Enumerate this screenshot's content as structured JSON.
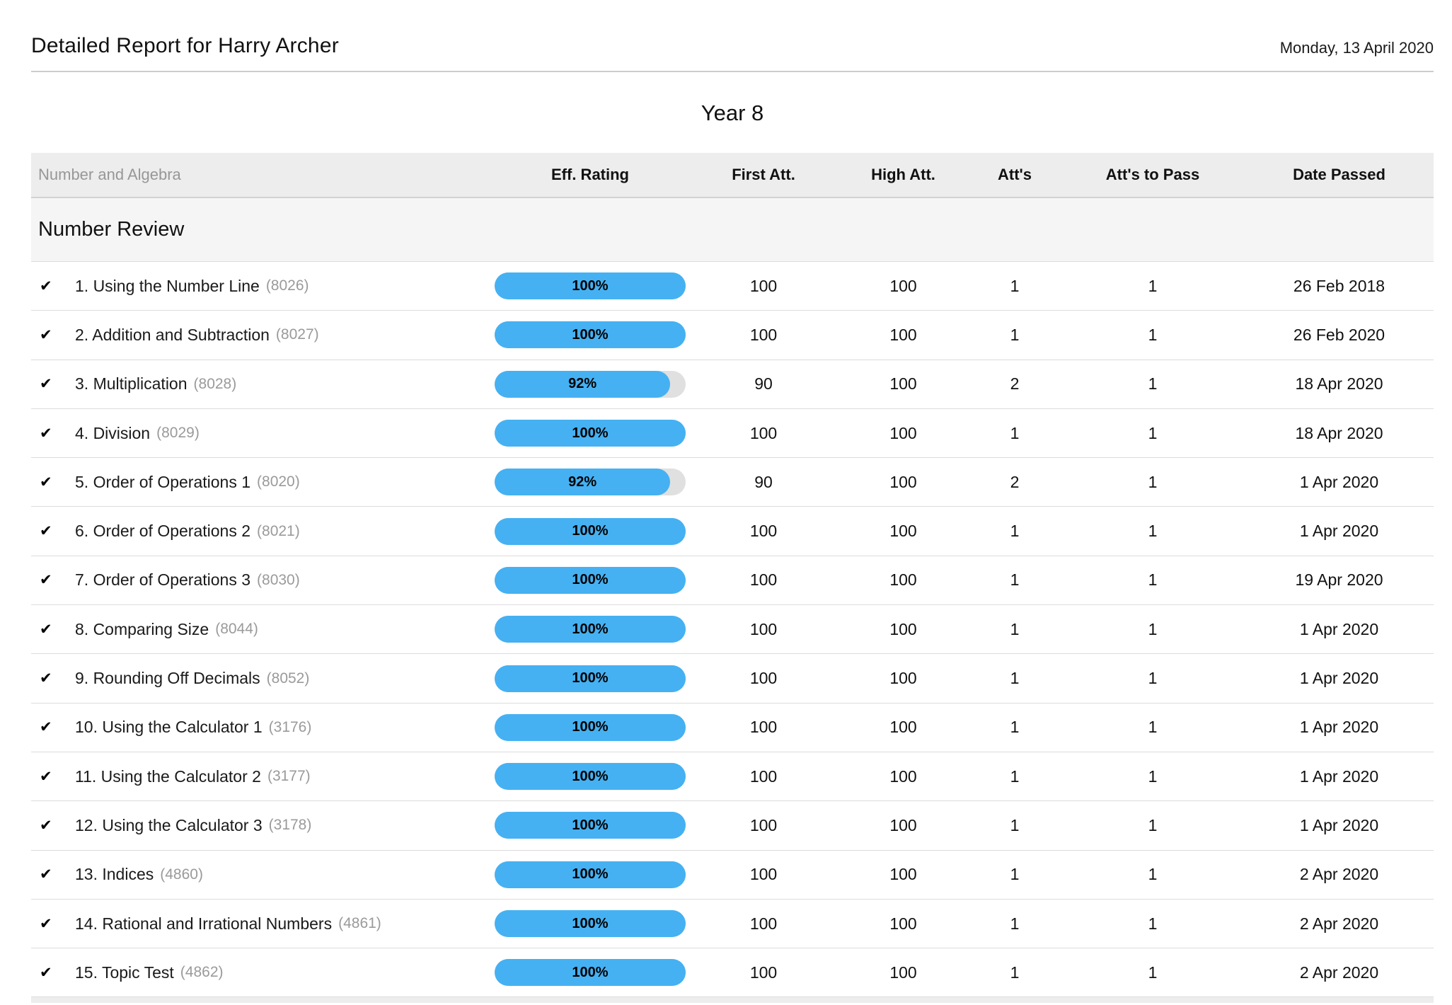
{
  "header": {
    "title": "Detailed Report for Harry Archer",
    "date": "Monday, 13 April 2020"
  },
  "year_title": "Year 8",
  "table": {
    "topic": "Number and Algebra",
    "columns": [
      "Eff. Rating",
      "First Att.",
      "High Att.",
      "Att's",
      "Att's to Pass",
      "Date Passed"
    ],
    "section": "Number Review",
    "check_icon": "✔",
    "rows": [
      {
        "name": "1. Using the Number Line",
        "id": "(8026)",
        "rating": 100,
        "rating_label": "100%",
        "first_att": "100",
        "high_att": "100",
        "atts": "1",
        "atts_to_pass": "1",
        "date_passed": "26 Feb 2018"
      },
      {
        "name": "2. Addition and Subtraction",
        "id": "(8027)",
        "rating": 100,
        "rating_label": "100%",
        "first_att": "100",
        "high_att": "100",
        "atts": "1",
        "atts_to_pass": "1",
        "date_passed": "26 Feb 2020"
      },
      {
        "name": "3. Multiplication",
        "id": "(8028)",
        "rating": 92,
        "rating_label": "92%",
        "first_att": "90",
        "high_att": "100",
        "atts": "2",
        "atts_to_pass": "1",
        "date_passed": "18 Apr 2020"
      },
      {
        "name": "4. Division",
        "id": "(8029)",
        "rating": 100,
        "rating_label": "100%",
        "first_att": "100",
        "high_att": "100",
        "atts": "1",
        "atts_to_pass": "1",
        "date_passed": "18 Apr 2020"
      },
      {
        "name": "5. Order of Operations 1",
        "id": "(8020)",
        "rating": 92,
        "rating_label": "92%",
        "first_att": "90",
        "high_att": "100",
        "atts": "2",
        "atts_to_pass": "1",
        "date_passed": "1 Apr 2020"
      },
      {
        "name": "6. Order of Operations 2",
        "id": "(8021)",
        "rating": 100,
        "rating_label": "100%",
        "first_att": "100",
        "high_att": "100",
        "atts": "1",
        "atts_to_pass": "1",
        "date_passed": "1 Apr 2020"
      },
      {
        "name": "7. Order of Operations 3",
        "id": "(8030)",
        "rating": 100,
        "rating_label": "100%",
        "first_att": "100",
        "high_att": "100",
        "atts": "1",
        "atts_to_pass": "1",
        "date_passed": "19 Apr 2020"
      },
      {
        "name": "8. Comparing Size",
        "id": "(8044)",
        "rating": 100,
        "rating_label": "100%",
        "first_att": "100",
        "high_att": "100",
        "atts": "1",
        "atts_to_pass": "1",
        "date_passed": "1 Apr 2020"
      },
      {
        "name": "9. Rounding Off Decimals",
        "id": "(8052)",
        "rating": 100,
        "rating_label": "100%",
        "first_att": "100",
        "high_att": "100",
        "atts": "1",
        "atts_to_pass": "1",
        "date_passed": "1 Apr 2020"
      },
      {
        "name": "10. Using the Calculator 1",
        "id": "(3176)",
        "rating": 100,
        "rating_label": "100%",
        "first_att": "100",
        "high_att": "100",
        "atts": "1",
        "atts_to_pass": "1",
        "date_passed": "1 Apr 2020"
      },
      {
        "name": "11. Using the Calculator 2",
        "id": "(3177)",
        "rating": 100,
        "rating_label": "100%",
        "first_att": "100",
        "high_att": "100",
        "atts": "1",
        "atts_to_pass": "1",
        "date_passed": "1 Apr 2020"
      },
      {
        "name": "12. Using the Calculator 3",
        "id": "(3178)",
        "rating": 100,
        "rating_label": "100%",
        "first_att": "100",
        "high_att": "100",
        "atts": "1",
        "atts_to_pass": "1",
        "date_passed": "1 Apr 2020"
      },
      {
        "name": "13. Indices",
        "id": "(4860)",
        "rating": 100,
        "rating_label": "100%",
        "first_att": "100",
        "high_att": "100",
        "atts": "1",
        "atts_to_pass": "1",
        "date_passed": "2 Apr 2020"
      },
      {
        "name": "14. Rational and Irrational Numbers",
        "id": "(4861)",
        "rating": 100,
        "rating_label": "100%",
        "first_att": "100",
        "high_att": "100",
        "atts": "1",
        "atts_to_pass": "1",
        "date_passed": "2 Apr 2020"
      },
      {
        "name": "15. Topic Test",
        "id": "(4862)",
        "rating": 100,
        "rating_label": "100%",
        "first_att": "100",
        "high_att": "100",
        "atts": "1",
        "atts_to_pass": "1",
        "date_passed": "2 Apr 2020"
      }
    ]
  },
  "colors": {
    "bar_fill": "#45b1f2",
    "bar_track": "#e0e0e0"
  }
}
